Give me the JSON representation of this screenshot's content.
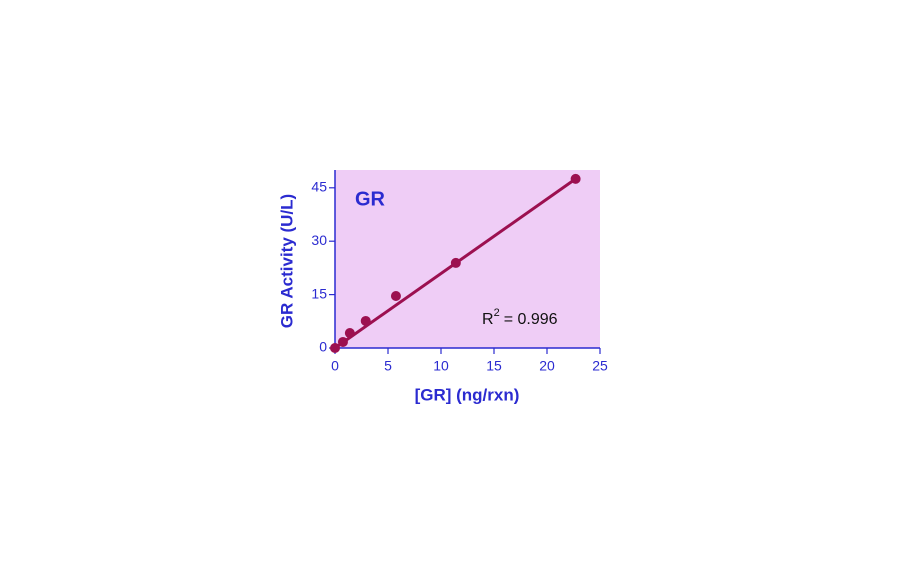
{
  "chart_data": {
    "type": "scatter",
    "title": "GR",
    "x_label": "[GR] (ng/rxn)",
    "y_label": "GR Activity (U/L)",
    "annotation": {
      "base": "R",
      "superscript": "2",
      "text": "= 0.996"
    },
    "x": [
      0,
      0.75,
      1.4,
      2.9,
      5.75,
      11.4,
      22.7
    ],
    "values": [
      0,
      1.7,
      4.2,
      7.6,
      14.6,
      23.9,
      47.5
    ],
    "color": "#9c1050",
    "fit_line": {
      "x": [
        0,
        22.7
      ],
      "values": [
        0,
        47.5
      ]
    },
    "xlim": [
      0,
      25
    ],
    "ylim": [
      0,
      50
    ],
    "xticks": [
      0,
      5,
      10,
      15,
      20,
      25
    ],
    "yticks": [
      0,
      15,
      30,
      45
    ],
    "background": "#efcdf6",
    "axis_color": "#2b2bd0"
  }
}
